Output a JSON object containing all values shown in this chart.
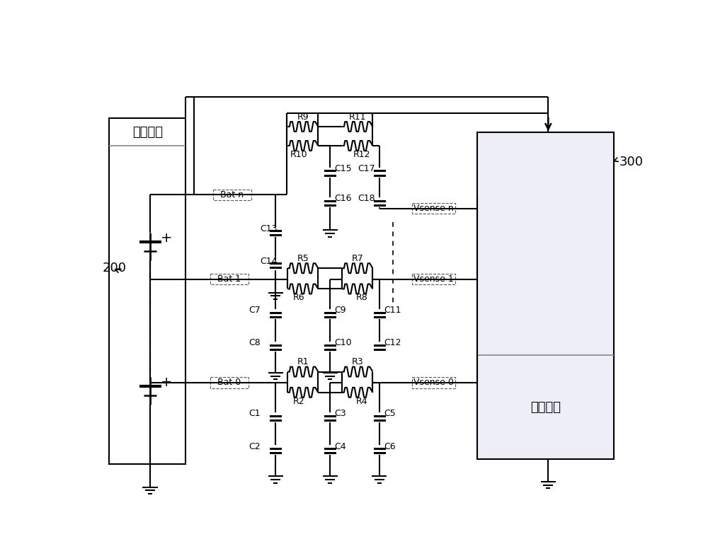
{
  "bg_color": "#ffffff",
  "line_color": "#000000",
  "fig_width": 10.0,
  "fig_height": 7.86,
  "left_box_label": "电芯模组",
  "right_box_label": "采样芯片",
  "label_200": "200",
  "label_300": "300",
  "bat_n": "Bat n",
  "bat_1": "Bat 1",
  "bat_0": "Bat 0",
  "vsense_n": "Vsense n",
  "vsense_1": "Vsense 1",
  "vsense_0": "Vsense 0"
}
